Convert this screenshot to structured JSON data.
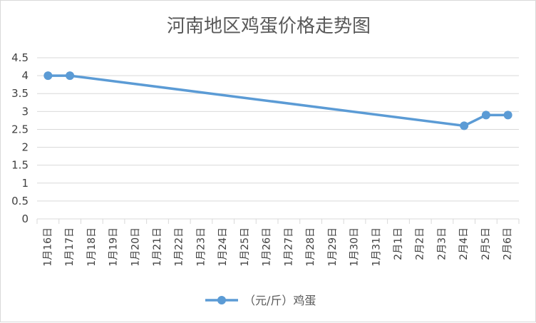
{
  "chart_data": {
    "type": "line",
    "title": "河南地区鸡蛋价格走势图",
    "xlabel": "",
    "ylabel": "",
    "categories": [
      "1月16日",
      "1月17日",
      "1月18日",
      "1月19日",
      "1月20日",
      "1月21日",
      "1月22日",
      "1月23日",
      "1月24日",
      "1月25日",
      "1月26日",
      "1月27日",
      "1月28日",
      "1月29日",
      "1月30日",
      "1月31日",
      "2月1日",
      "2月2日",
      "2月3日",
      "2月4日",
      "2月5日",
      "2月6日"
    ],
    "series": [
      {
        "name": "（元/斤）鸡蛋",
        "color": "#5b9bd5",
        "values": [
          4.0,
          4.0,
          null,
          null,
          null,
          null,
          null,
          null,
          null,
          null,
          null,
          null,
          null,
          null,
          null,
          null,
          null,
          null,
          null,
          2.6,
          2.9,
          2.9
        ]
      }
    ],
    "ylim": [
      0,
      4.5
    ],
    "yticks": [
      0,
      0.5,
      1,
      1.5,
      2,
      2.5,
      3,
      3.5,
      4,
      4.5
    ],
    "grid": true,
    "legend_position": "bottom",
    "colors": {
      "line": "#5b9bd5",
      "grid": "#d9d9d9",
      "text": "#595959"
    }
  }
}
